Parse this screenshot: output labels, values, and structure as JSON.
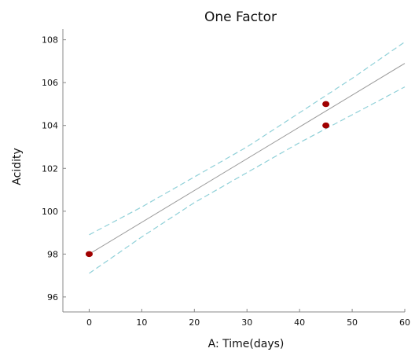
{
  "chart_data": {
    "type": "scatter",
    "title": "One Factor",
    "xlabel": "A: Time(days)",
    "ylabel": "Acidity",
    "xlim": [
      -5,
      60
    ],
    "ylim": [
      95.3,
      108.5
    ],
    "x_ticks": [
      0,
      10,
      20,
      30,
      40,
      50,
      60
    ],
    "y_ticks": [
      96,
      98,
      100,
      102,
      104,
      106,
      108
    ],
    "grid": false,
    "colors": {
      "points": "#a00000",
      "fit": "#9a9a9a",
      "confidence": "#8fd0d8",
      "axes": "#888888"
    },
    "points": [
      {
        "x": 0,
        "y": 98
      },
      {
        "x": 45,
        "y": 105
      },
      {
        "x": 45,
        "y": 104
      }
    ],
    "fit_line": {
      "x": [
        0,
        60
      ],
      "y": [
        98.0,
        106.9
      ]
    },
    "upper_band": {
      "x": [
        0,
        10,
        20,
        30,
        40,
        50,
        60
      ],
      "y": [
        98.9,
        100.2,
        101.6,
        103.0,
        104.6,
        106.2,
        107.9
      ]
    },
    "lower_band": {
      "x": [
        0,
        10,
        20,
        30,
        40,
        50,
        60
      ],
      "y": [
        97.1,
        98.8,
        100.4,
        101.8,
        103.2,
        104.5,
        105.8
      ]
    }
  }
}
